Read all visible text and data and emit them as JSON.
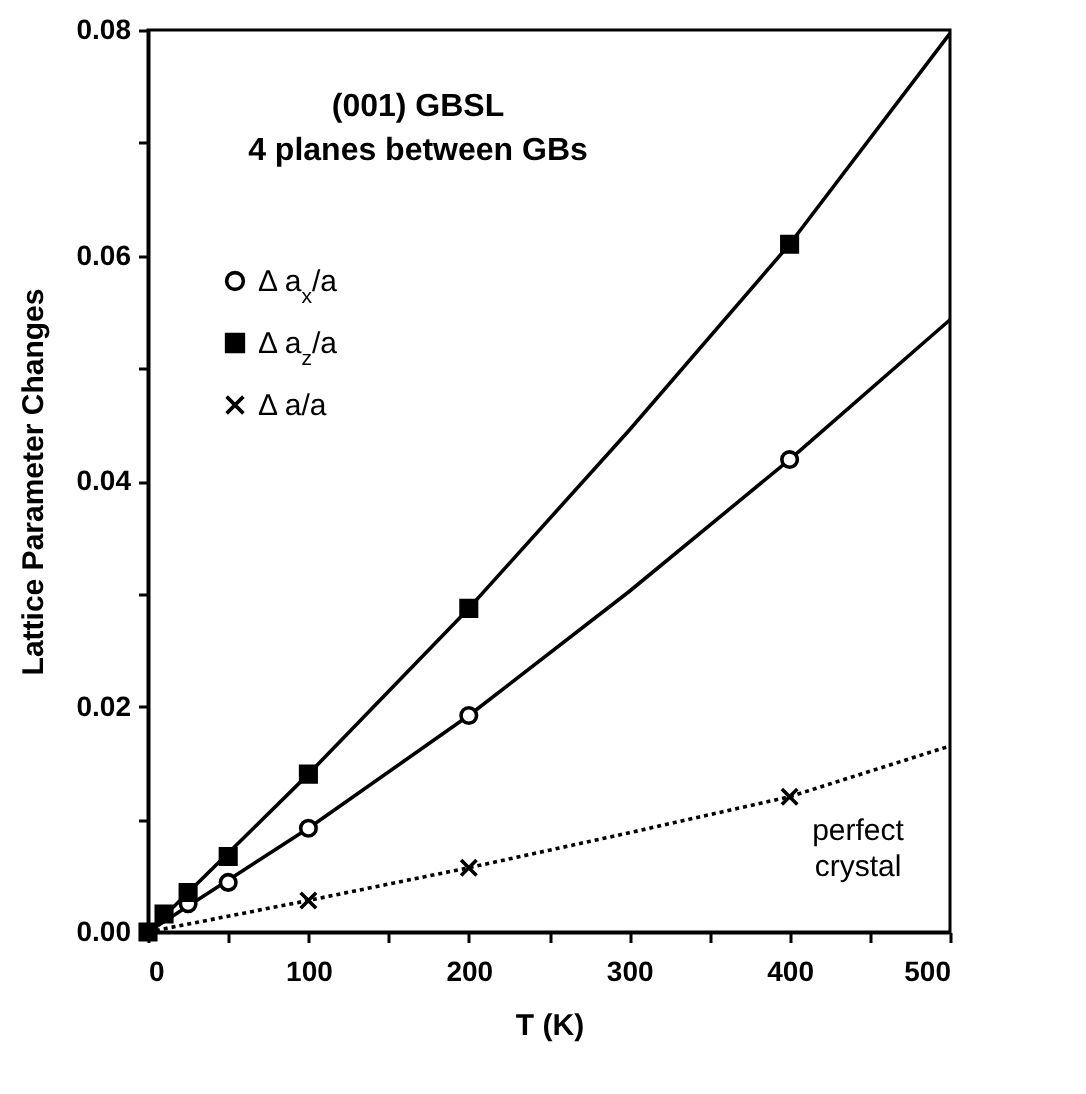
{
  "chart_data": {
    "type": "scatter",
    "xlabel": "T (K)",
    "ylabel": "Lattice  Parameter  Changes",
    "annotations": [
      "(001) GBSL",
      "4 planes between GBs",
      "perfect crystal"
    ],
    "xlim": [
      0,
      500
    ],
    "ylim": [
      0,
      0.08
    ],
    "xticks": [
      0,
      {
        "value": 50,
        "label": null
      },
      100,
      {
        "value": 150,
        "label": null
      },
      200,
      {
        "value": 250,
        "label": null
      },
      300,
      {
        "value": 350,
        "label": null
      },
      400,
      {
        "value": 450,
        "label": null
      },
      500
    ],
    "yticks": [
      {
        "value": 0,
        "label": "0.00"
      },
      {
        "value": 0.01,
        "label": null
      },
      {
        "value": 0.02,
        "label": "0.02"
      },
      {
        "value": 0.03,
        "label": null
      },
      {
        "value": 0.04,
        "label": "0.04"
      },
      {
        "value": 0.05,
        "label": null
      },
      {
        "value": 0.06,
        "label": "0.06"
      },
      {
        "value": 0.07,
        "label": null
      },
      {
        "value": 0.08,
        "label": "0.08"
      }
    ],
    "grid": false,
    "legend": "top left",
    "series": [
      {
        "name": "Δ a$_{x}$/a",
        "marker": "circle",
        "color": "#000000",
        "x": [
          25,
          50,
          100,
          200,
          400
        ],
        "values": [
          0.0025,
          0.0044,
          0.0092,
          0.0192,
          0.0419
        ]
      },
      {
        "name": "Δ a$_{z}$/a",
        "marker": "square",
        "color": "#000000",
        "x": [
          0,
          10,
          25,
          50,
          100,
          200,
          400
        ],
        "values": [
          0,
          0.0016,
          0.0035,
          0.0067,
          0.014,
          0.0287,
          0.061
        ]
      },
      {
        "name": "Δ a/a",
        "marker": "cross",
        "color": "#000000",
        "x": [
          100,
          200,
          400
        ],
        "values": [
          0.0028,
          0.0057,
          0.012
        ]
      },
      {
        "type": "line",
        "line_style": "solid",
        "marker": "none",
        "color": "#000000",
        "x": [
          0,
          100,
          200,
          300,
          400,
          500
        ],
        "values": [
          0,
          0.0092,
          0.0192,
          0.0302,
          0.0419,
          0.0543
        ]
      },
      {
        "type": "line",
        "line_style": "solid",
        "marker": "none",
        "color": "#000000",
        "x": [
          0,
          100,
          200,
          300,
          400,
          500
        ],
        "values": [
          0,
          0.014,
          0.0287,
          0.0445,
          0.061,
          0.0797
        ]
      },
      {
        "type": "line",
        "line_style": "dotted",
        "marker": "none",
        "color": "#000000",
        "x": [
          0,
          100,
          200,
          300,
          400,
          500
        ],
        "values": [
          0,
          0.0028,
          0.0057,
          0.0088,
          0.012,
          0.0165
        ]
      }
    ]
  }
}
